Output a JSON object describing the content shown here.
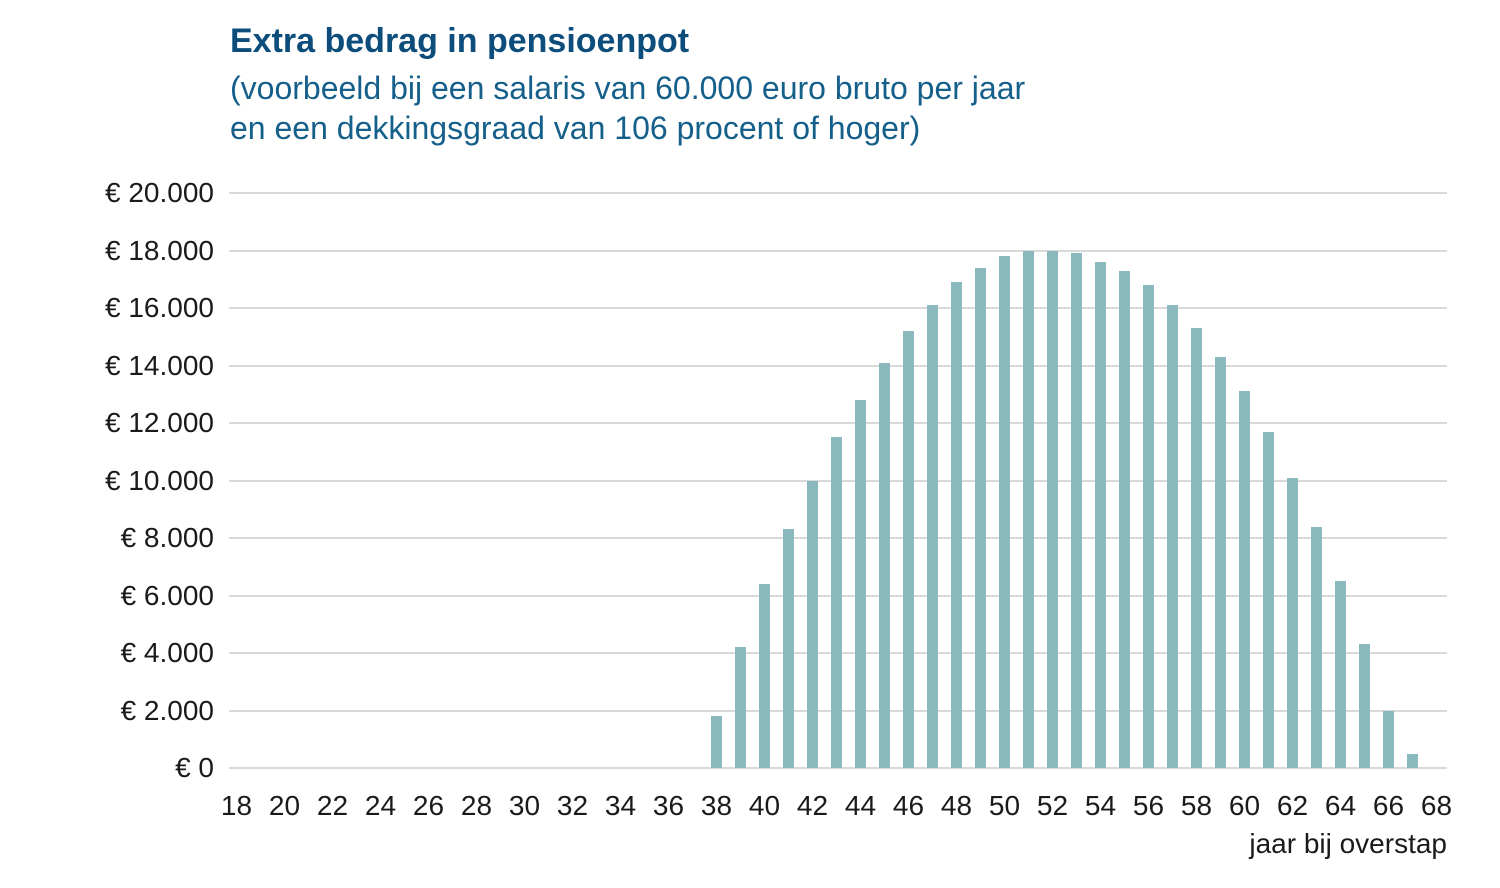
{
  "header": {
    "title": "Extra bedrag in pensioenpot",
    "subtitle_line1": "(voorbeeld bij een salaris van 60.000 euro bruto per jaar",
    "subtitle_line2": "en een dekkingsgraad van 106 procent of hoger)"
  },
  "axes": {
    "x_title": "jaar bij overstap"
  },
  "colors": {
    "background": "#ffffff",
    "title": "#0c4d7c",
    "subtitle": "#155f8b",
    "bar": "#8ab9bd",
    "gridline": "#d9d9d9",
    "axis_text": "#1a1a1a"
  },
  "chart_data": {
    "type": "bar",
    "title": "Extra bedrag in pensioenpot",
    "subtitle": "(voorbeeld bij een salaris van 60.000 euro bruto per jaar en een dekkingsgraad van 106 procent of hoger)",
    "xlabel": "jaar bij overstap",
    "ylabel": "",
    "x": [
      38,
      39,
      40,
      41,
      42,
      43,
      44,
      45,
      46,
      47,
      48,
      49,
      50,
      51,
      52,
      53,
      54,
      55,
      56,
      57,
      58,
      59,
      60,
      61,
      62,
      63,
      64,
      65,
      66,
      67
    ],
    "values": [
      1800,
      4200,
      6400,
      8300,
      10000,
      11500,
      12800,
      14100,
      15200,
      16100,
      16900,
      17400,
      17800,
      18000,
      18000,
      17900,
      17600,
      17300,
      16800,
      16100,
      15300,
      14300,
      13100,
      11700,
      10100,
      8400,
      6500,
      4300,
      2000,
      500
    ],
    "xlim": [
      17.7,
      68.8
    ],
    "ylim": [
      0,
      20000
    ],
    "x_tick_values": [
      18,
      20,
      22,
      24,
      26,
      28,
      30,
      32,
      34,
      36,
      38,
      40,
      42,
      44,
      46,
      48,
      50,
      52,
      54,
      56,
      58,
      60,
      62,
      64,
      66,
      68
    ],
    "x_tick_labels": [
      "18",
      "20",
      "22",
      "24",
      "26",
      "28",
      "30",
      "32",
      "34",
      "36",
      "38",
      "40",
      "42",
      "44",
      "46",
      "48",
      "50",
      "52",
      "54",
      "56",
      "58",
      "60",
      "62",
      "64",
      "66",
      "68"
    ],
    "y_tick_values": [
      20000,
      18000,
      16000,
      14000,
      12000,
      10000,
      8000,
      6000,
      4000,
      2000,
      0
    ],
    "y_tick_labels": [
      "€ 20.000",
      "€ 18.000",
      "€ 16.000",
      "€ 14.000",
      "€ 12.000",
      "€ 10.000",
      "€ 8.000",
      "€ 6.000",
      "€ 4.000",
      "€ 2.000",
      "€ 0"
    ],
    "grid": "horizontal",
    "legend": "none"
  }
}
